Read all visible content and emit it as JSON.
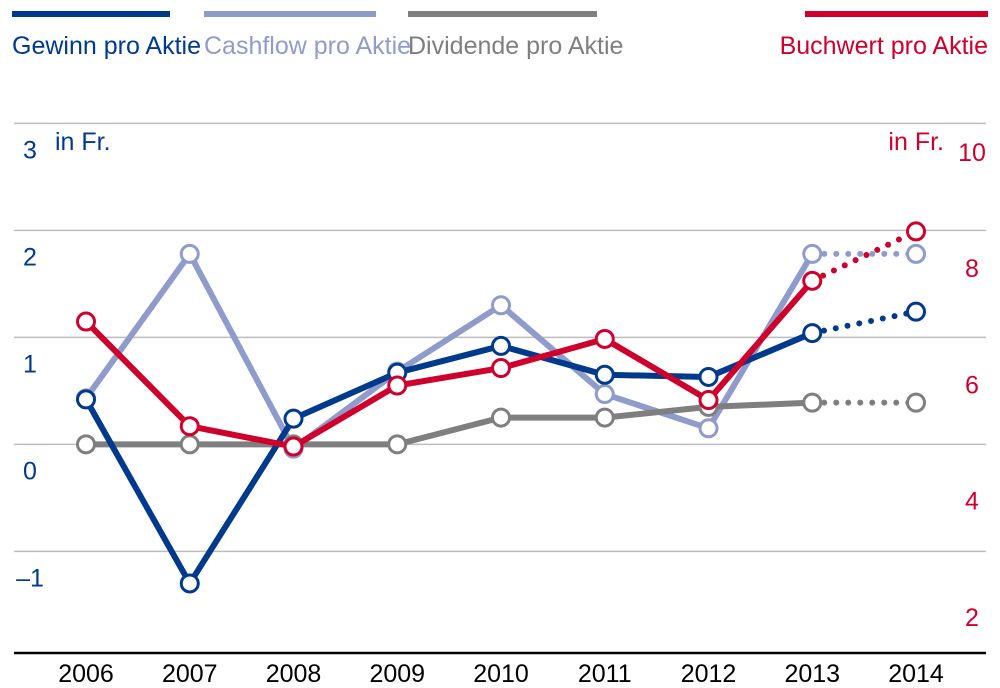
{
  "chart_data": {
    "type": "line",
    "categories": [
      "2006",
      "2007",
      "2008",
      "2009",
      "2010",
      "2011",
      "2012",
      "2013",
      "2014"
    ],
    "left_axis": {
      "unit_label": "in Fr.",
      "ticks": [
        "3",
        "2",
        "1",
        "0",
        "–1"
      ],
      "tick_values": [
        3,
        2,
        1,
        0,
        -1
      ],
      "range": [
        -1.95,
        3.05
      ]
    },
    "right_axis": {
      "unit_label": "in Fr.",
      "ticks": [
        "10",
        "8",
        "6",
        "4",
        "2"
      ],
      "tick_values": [
        10,
        8,
        6,
        4,
        2
      ],
      "range": [
        0.9,
        10.1
      ]
    },
    "series": [
      {
        "name": "Cashflow pro Aktie",
        "axis": "left",
        "color": "#8F9BCB",
        "values": [
          0.43,
          1.78,
          -0.04,
          0.68,
          1.3,
          0.47,
          0.15,
          1.78,
          1.78
        ],
        "projected_from": 7
      },
      {
        "name": "Dividende pro Aktie",
        "axis": "left",
        "color": "#7F7F7F",
        "values": [
          0.0,
          0.0,
          0.0,
          0.0,
          0.25,
          0.25,
          0.35,
          0.39,
          0.39
        ],
        "projected_from": 7
      },
      {
        "name": "Gewinn pro Aktie",
        "axis": "left",
        "color": "#003A8C",
        "values": [
          0.42,
          -1.3,
          0.24,
          0.67,
          0.92,
          0.65,
          0.63,
          1.04,
          1.24
        ],
        "projected_from": 7
      },
      {
        "name": "Buchwert pro Aktie",
        "axis": "right",
        "color": "#D0002C",
        "values": [
          6.6,
          4.8,
          4.45,
          5.5,
          5.8,
          6.3,
          5.25,
          7.3,
          8.15
        ],
        "projected_from": 7
      }
    ],
    "legend": [
      {
        "label": "Gewinn pro Aktie",
        "color": "#003A8C",
        "position": "left"
      },
      {
        "label": "Cashflow pro Aktie",
        "color": "#8F9BCB",
        "position": "left"
      },
      {
        "label": "Dividende pro Aktie",
        "color": "#7F7F7F",
        "position": "left"
      },
      {
        "label": "Buchwert pro Aktie",
        "color": "#D0002C",
        "position": "right"
      }
    ]
  }
}
